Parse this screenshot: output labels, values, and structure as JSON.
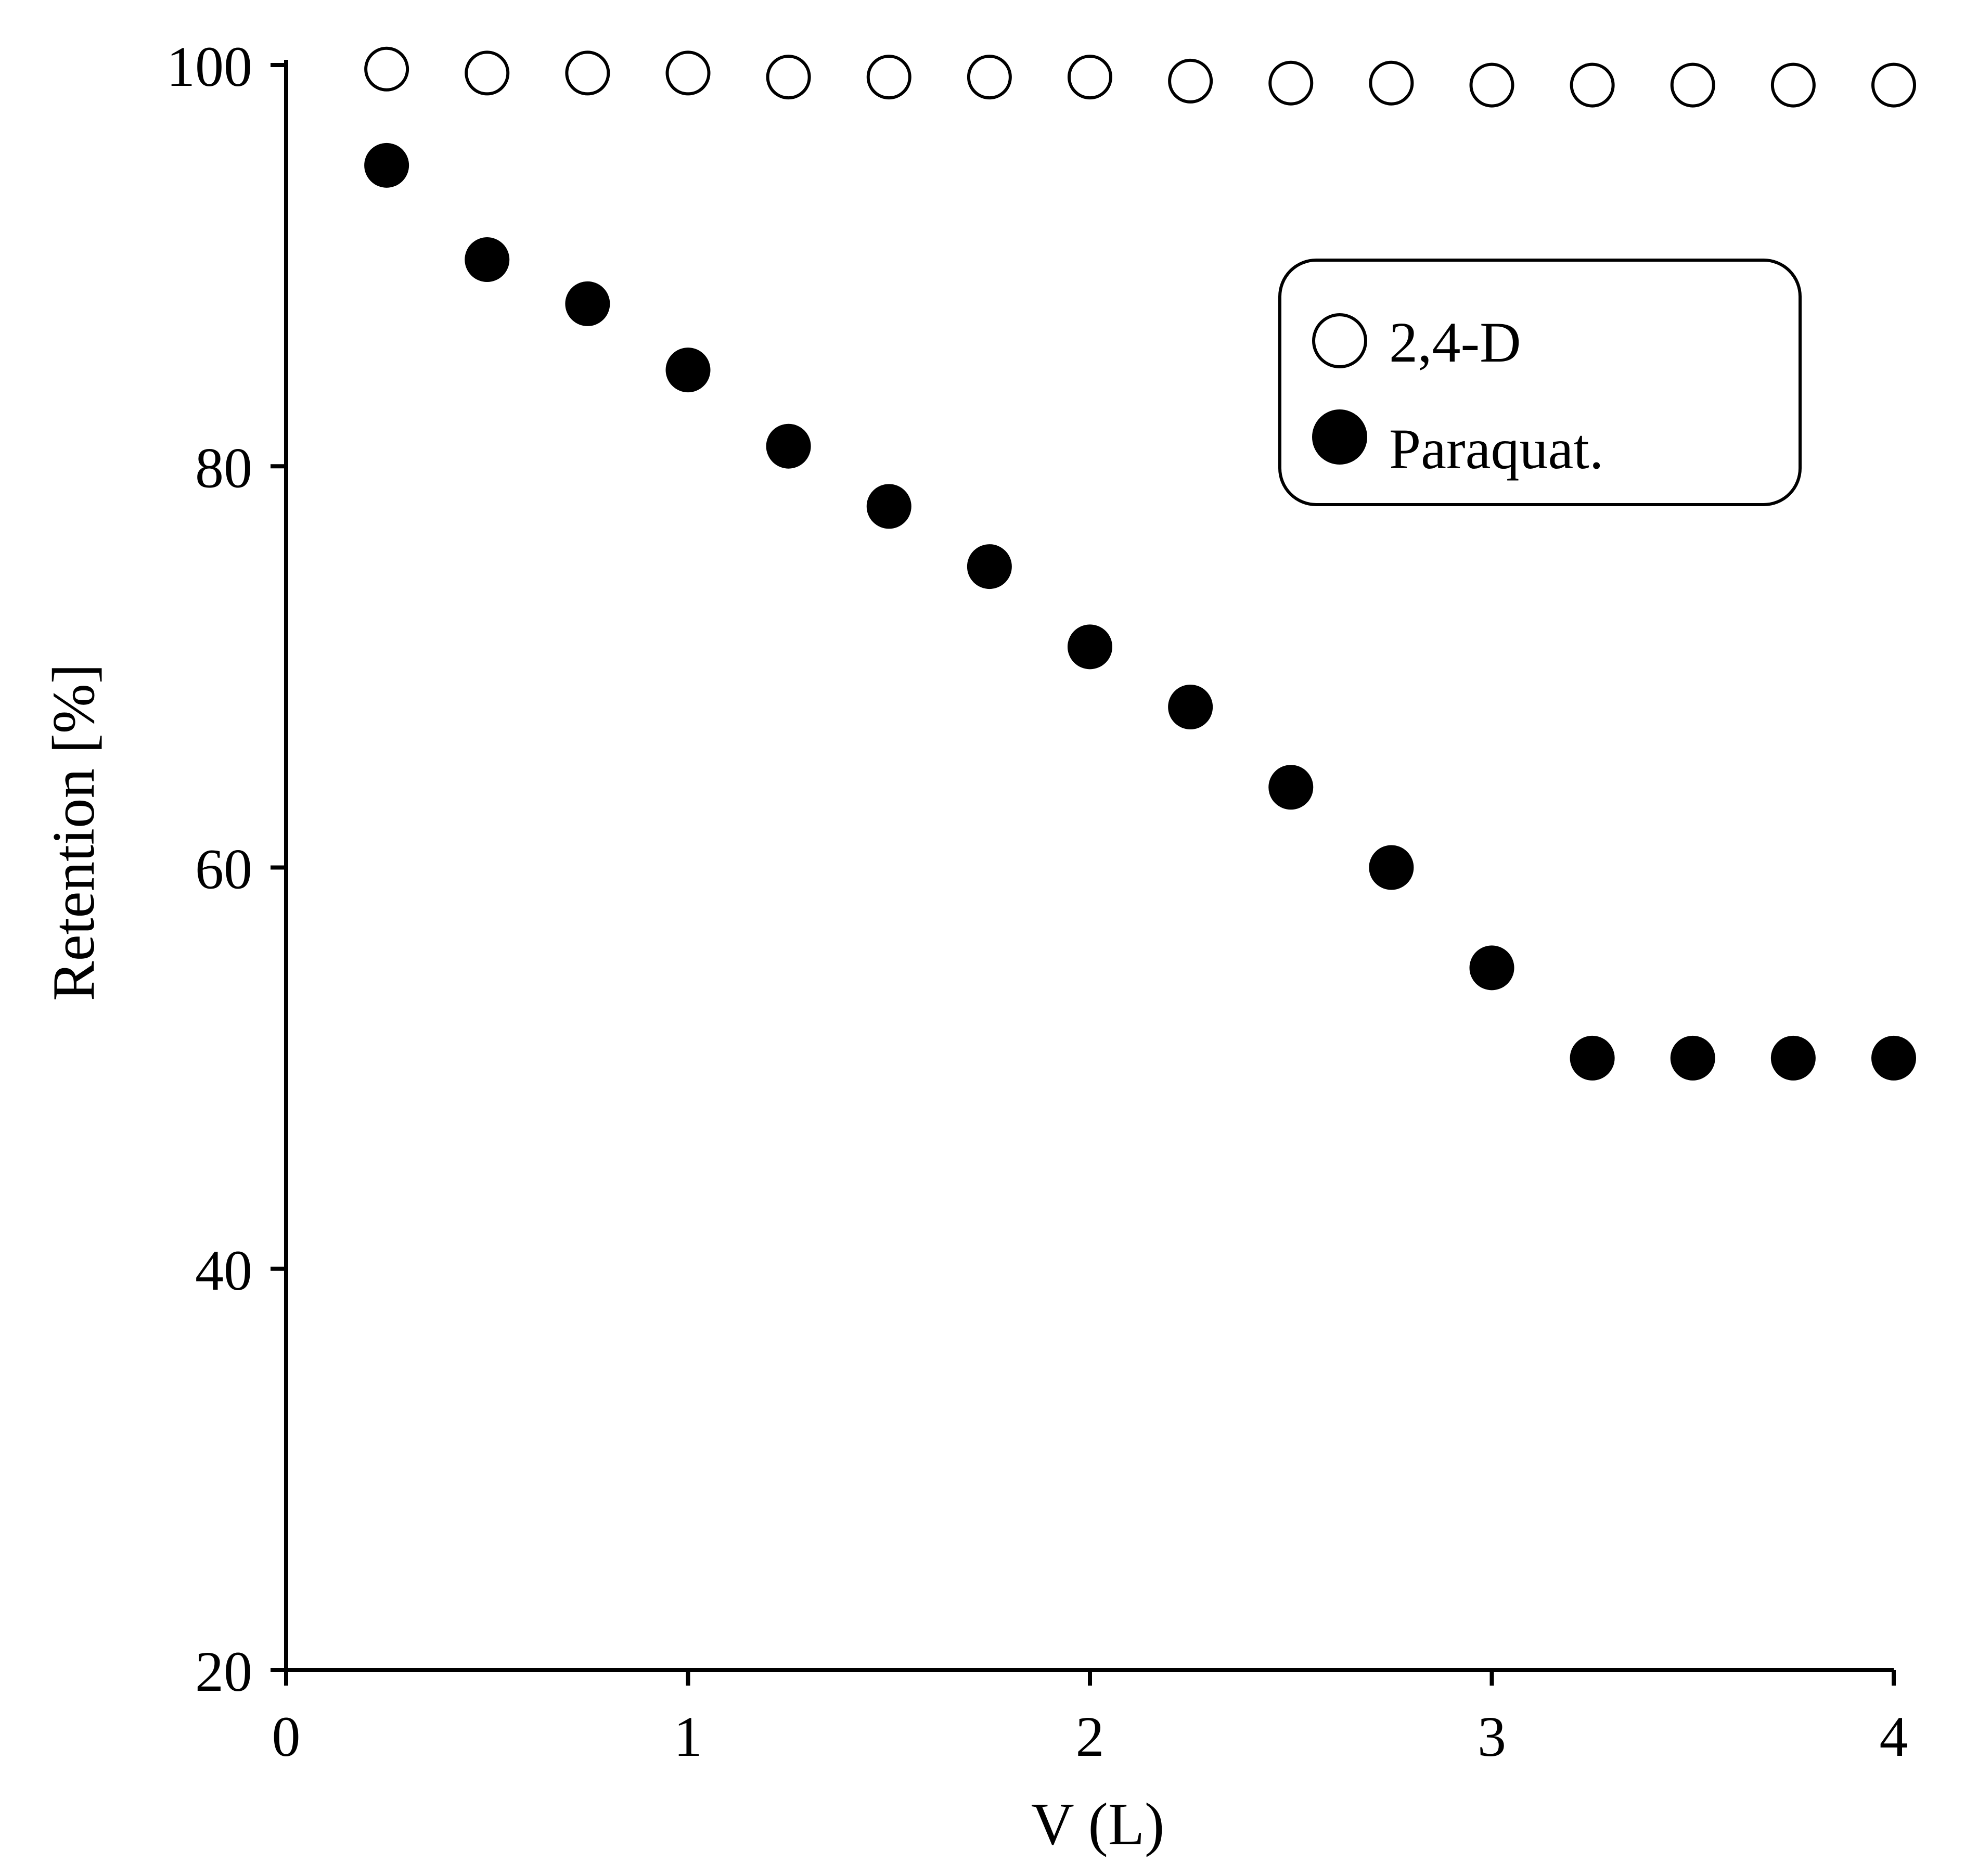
{
  "chart_data": {
    "type": "scatter",
    "title": "",
    "xlabel": "V (L)",
    "ylabel": "Retention [%]",
    "xlim": [
      0,
      4
    ],
    "ylim": [
      20,
      100
    ],
    "x_ticks": [
      "0",
      "1",
      "2",
      "3",
      "4"
    ],
    "y_ticks": [
      "20",
      "40",
      "60",
      "80",
      "100"
    ],
    "grid": false,
    "legend_position": "top-right",
    "series": [
      {
        "name": "2,4-D",
        "marker": "open-circle",
        "color": "#000000",
        "x": [
          0.25,
          0.5,
          0.75,
          1.0,
          1.25,
          1.5,
          1.75,
          2.0,
          2.25,
          2.5,
          2.75,
          3.0,
          3.25,
          3.5,
          3.75,
          4.0
        ],
        "y": [
          99.8,
          99.6,
          99.6,
          99.6,
          99.4,
          99.4,
          99.4,
          99.4,
          99.2,
          99.1,
          99.1,
          99.0,
          99.0,
          99.0,
          99.0,
          99.0
        ]
      },
      {
        "name": "Paraquat.",
        "marker": "filled-circle",
        "color": "#000000",
        "x": [
          0.25,
          0.5,
          0.75,
          1.0,
          1.25,
          1.5,
          1.75,
          2.0,
          2.25,
          2.5,
          2.75,
          3.0,
          3.25,
          3.5,
          3.75,
          4.0
        ],
        "y": [
          95.0,
          90.3,
          88.1,
          84.8,
          81.0,
          78.0,
          75.0,
          71.0,
          68.0,
          64.0,
          60.0,
          55.0,
          50.5,
          50.5,
          50.5,
          50.5
        ]
      }
    ]
  }
}
